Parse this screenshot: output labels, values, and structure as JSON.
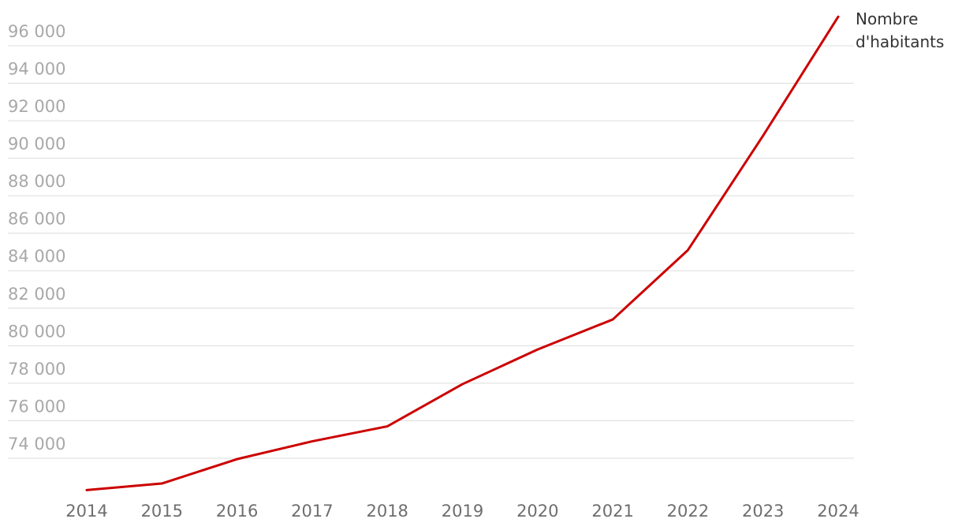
{
  "chart_data": {
    "type": "line",
    "x": [
      2014,
      2015,
      2016,
      2017,
      2018,
      2019,
      2020,
      2021,
      2022,
      2023,
      2024
    ],
    "series": [
      {
        "name": "Nombre d'habitants",
        "color": "#cc0000",
        "values": [
          72300,
          72650,
          73950,
          74900,
          75700,
          77950,
          79800,
          81400,
          85100,
          91200,
          97550
        ]
      }
    ],
    "xlim": [
      2014,
      2024
    ],
    "xticks": [
      2014,
      2015,
      2016,
      2017,
      2018,
      2019,
      2020,
      2021,
      2022,
      2023,
      2024
    ],
    "ylim": [
      72000,
      97800
    ],
    "yticks": [
      {
        "value": 74000,
        "label": "74 000"
      },
      {
        "value": 76000,
        "label": "76 000"
      },
      {
        "value": 78000,
        "label": "78 000"
      },
      {
        "value": 80000,
        "label": "80 000"
      },
      {
        "value": 82000,
        "label": "82 000"
      },
      {
        "value": 84000,
        "label": "84 000"
      },
      {
        "value": 86000,
        "label": "86 000"
      },
      {
        "value": 88000,
        "label": "88 000"
      },
      {
        "value": 90000,
        "label": "90 000"
      },
      {
        "value": 92000,
        "label": "92 000"
      },
      {
        "value": 94000,
        "label": "94 000"
      },
      {
        "value": 96000,
        "label": "96 000"
      }
    ],
    "grid": true
  }
}
